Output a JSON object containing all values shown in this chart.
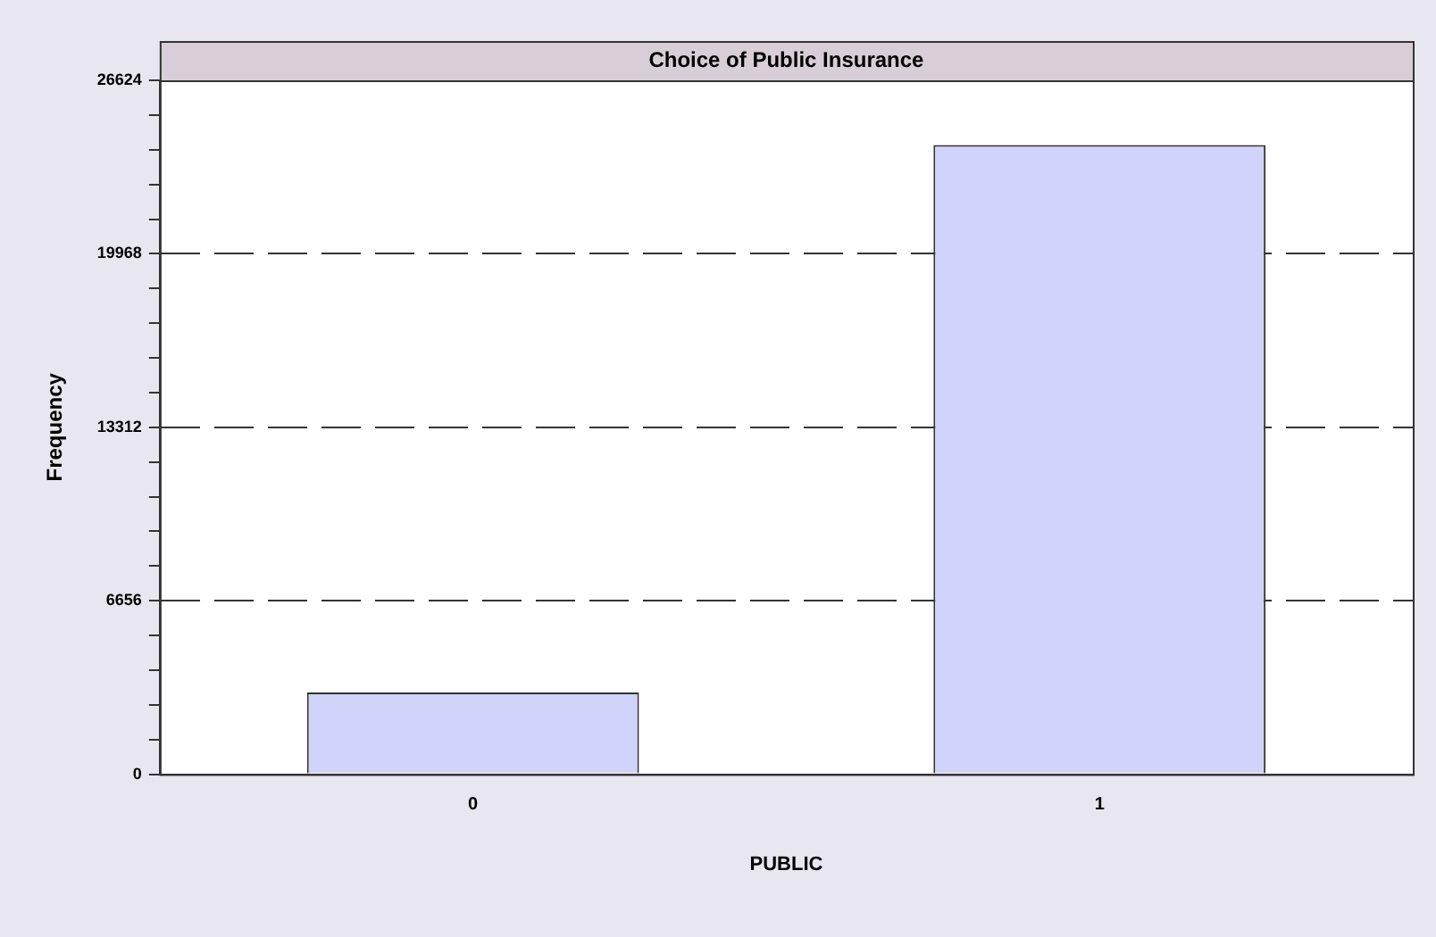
{
  "chart_data": {
    "type": "bar",
    "title": "Choice of Public Insurance",
    "xlabel": "PUBLIC",
    "ylabel": "Frequency",
    "categories": [
      "0",
      "1"
    ],
    "values": [
      3140,
      24140
    ],
    "color": "#d0d4fa",
    "ylim": [
      0,
      26624
    ],
    "yticks": [
      0,
      {
        "value": 1331.2,
        "label": null
      },
      {
        "value": 2662.4,
        "label": null
      },
      {
        "value": 3993.6,
        "label": null
      },
      {
        "value": 5324.8,
        "label": null
      },
      6656,
      {
        "value": 7987.2,
        "label": null
      },
      {
        "value": 9318.4,
        "label": null
      },
      {
        "value": 10649.6,
        "label": null
      },
      {
        "value": 11980.8,
        "label": null
      },
      13312,
      {
        "value": 14643.2,
        "label": null
      },
      {
        "value": 15974.4,
        "label": null
      },
      {
        "value": 17305.6,
        "label": null
      },
      {
        "value": 18636.8,
        "label": null
      },
      19968,
      {
        "value": 21299.2,
        "label": null
      },
      {
        "value": 22630.4,
        "label": null
      },
      {
        "value": 23961.6,
        "label": null
      },
      {
        "value": 25292.8,
        "label": null
      },
      26624
    ],
    "grid": "y",
    "line_style": "dashed",
    "legend": false
  }
}
